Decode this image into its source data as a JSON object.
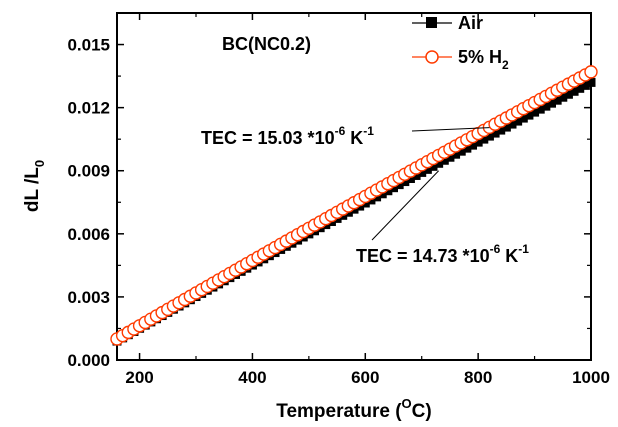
{
  "chart_data": {
    "type": "scatter",
    "panel_label": "BC(NC0.2)",
    "xlabel": {
      "prefix": "Temperature (",
      "superscript": "O",
      "suffix": "C)"
    },
    "ylabel": {
      "base": "dL /L",
      "subscript": "0"
    },
    "xlim": [
      160,
      1000
    ],
    "ylim": [
      0,
      0.0165
    ],
    "xticks": [
      200,
      400,
      600,
      800,
      1000
    ],
    "yticks": [
      "0.000",
      "0.003",
      "0.006",
      "0.009",
      "0.012",
      "0.015"
    ],
    "legend_position": "top-right",
    "series": [
      {
        "name": "Air",
        "marker": "filled-square",
        "color": "#000000",
        "x_start": 160,
        "x_end": 1000,
        "x_step": 10,
        "y_start": 0.0009,
        "y_end": 0.0132,
        "legend": {
          "base": "Air",
          "subscript": ""
        }
      },
      {
        "name": "5% H2",
        "marker": "open-circle",
        "color": "#ff3b00",
        "x_start": 160,
        "x_end": 1000,
        "x_step": 10,
        "y_start": 0.001,
        "y_end": 0.0137,
        "legend": {
          "base": "5% H",
          "subscript": "2"
        }
      }
    ],
    "annotations": [
      {
        "text": "TEC = 15.03 *10",
        "exponent": "-6",
        "unit": " K",
        "unit_exponent": "-1",
        "arrow_to": {
          "x": 820,
          "y": 0.01105
        }
      },
      {
        "text": "TEC = 14.73 *10",
        "exponent": "-6",
        "unit": " K",
        "unit_exponent": "-1",
        "arrow_to": {
          "x": 730,
          "y": 0.009
        }
      }
    ]
  }
}
